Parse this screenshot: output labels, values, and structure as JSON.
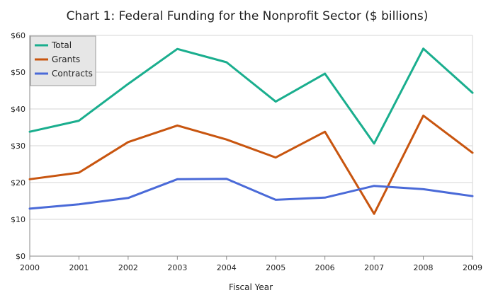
{
  "chart_data": {
    "type": "line",
    "title": "Chart 1: Federal Funding for the Nonprofit Sector ($ billions)",
    "xlabel": "Fiscal Year",
    "ylabel": "",
    "x": [
      "2000",
      "2001",
      "2002",
      "2003",
      "2004",
      "2005",
      "2006",
      "2007",
      "2008",
      "2009"
    ],
    "ylim": [
      0,
      60
    ],
    "yticks": [
      0,
      10,
      20,
      30,
      40,
      50,
      60
    ],
    "ytick_labels": [
      "$0",
      "$10",
      "$20",
      "$30",
      "$40",
      "$50",
      "$60"
    ],
    "grid": true,
    "legend_position": "top-left",
    "series": [
      {
        "name": "Total",
        "color": "#1aae8e",
        "values": [
          33.8,
          36.8,
          46.8,
          56.3,
          52.7,
          42.0,
          49.6,
          30.6,
          56.4,
          44.4
        ]
      },
      {
        "name": "Grants",
        "color": "#c8550f",
        "values": [
          20.9,
          22.7,
          31.0,
          35.5,
          31.7,
          26.8,
          33.8,
          11.5,
          38.2,
          28.1
        ]
      },
      {
        "name": "Contracts",
        "color": "#4a6ad8",
        "values": [
          12.9,
          14.1,
          15.8,
          20.9,
          21.0,
          15.3,
          15.9,
          19.1,
          18.2,
          16.3
        ]
      }
    ]
  }
}
